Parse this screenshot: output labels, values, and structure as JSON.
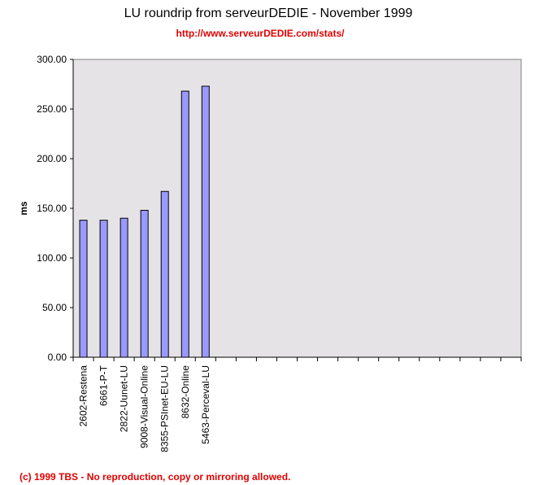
{
  "title": "LU roundrip from serveurDEDIE - November 1999",
  "subtitle": "http://www.serveurDEDIE.com/stats/",
  "footer": "(c) 1999 TBS - No reproduction, copy or mirroring allowed.",
  "colors": {
    "bar_fill": "#9999ff",
    "bar_stroke": "#000000",
    "plot_bg": "#e5e3e5",
    "accent_red": "#e00000"
  },
  "chart_data": {
    "type": "bar",
    "title": "LU roundrip from serveurDEDIE - November 1999",
    "xlabel": "",
    "ylabel": "ms",
    "ylim": [
      0,
      300
    ],
    "ytick_values": [
      0,
      50,
      100,
      150,
      200,
      250,
      300
    ],
    "ytick_labels": [
      "0.00",
      "50.00",
      "100.00",
      "150.00",
      "200.00",
      "250.00",
      "300.00"
    ],
    "slot_count": 22,
    "grid": false,
    "legend": "none",
    "categories": [
      "2602-Restena",
      "6661-P-T",
      "2822-Uunet-LU",
      "9008-Visual-Online",
      "8355-PSInet-EU-LU",
      "8632-Online",
      "5463-Perceval-LU"
    ],
    "values": [
      138,
      138,
      140,
      148,
      167,
      268,
      273
    ]
  }
}
